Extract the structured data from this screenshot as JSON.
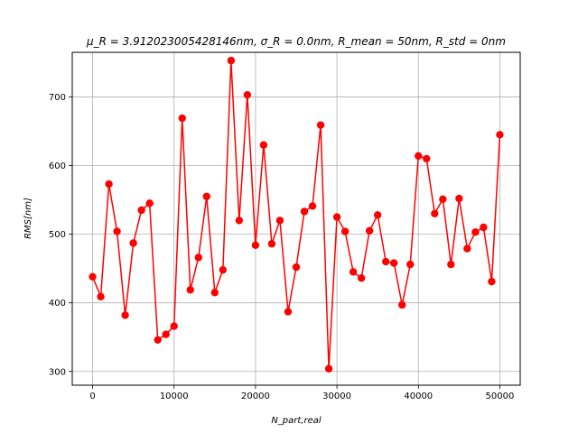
{
  "chart_data": {
    "type": "line",
    "title": "μ_R = 3.912023005428146nm, σ_R = 0.0nm, R_mean = 50nm, R_std = 0nm",
    "xlabel": "N_part,real",
    "ylabel": "RMS[nm]",
    "xlim": [
      -2500,
      52500
    ],
    "ylim": [
      280,
      765
    ],
    "x_ticks": [
      0,
      10000,
      20000,
      30000,
      40000,
      50000
    ],
    "x_tick_labels": [
      "0",
      "10000",
      "20000",
      "30000",
      "40000",
      "50000"
    ],
    "y_ticks": [
      300,
      400,
      500,
      600,
      700
    ],
    "y_tick_labels": [
      "300",
      "400",
      "500",
      "600",
      "700"
    ],
    "grid": true,
    "series": [
      {
        "color": "#ff0000",
        "marker": "circle",
        "x": [
          0,
          1000,
          2000,
          3000,
          4000,
          5000,
          6000,
          7000,
          8000,
          9000,
          10000,
          11000,
          12000,
          13000,
          14000,
          15000,
          16000,
          17000,
          18000,
          19000,
          20000,
          21000,
          22000,
          23000,
          24000,
          25000,
          26000,
          27000,
          28000,
          29000,
          30000,
          31000,
          32000,
          33000,
          34000,
          35000,
          36000,
          37000,
          38000,
          39000,
          40000,
          41000,
          42000,
          43000,
          44000,
          45000,
          46000,
          47000,
          48000,
          49000,
          50000
        ],
        "y": [
          438,
          409,
          573,
          504,
          382,
          487,
          535,
          545,
          346,
          354,
          366,
          669,
          419,
          466,
          555,
          415,
          448,
          753,
          520,
          703,
          484,
          630,
          486,
          520,
          387,
          452,
          533,
          541,
          659,
          304,
          525,
          504,
          445,
          436,
          505,
          528,
          460,
          458,
          397,
          456,
          614,
          610,
          530,
          551,
          456,
          552,
          479,
          503,
          510,
          431,
          645
        ]
      }
    ]
  }
}
